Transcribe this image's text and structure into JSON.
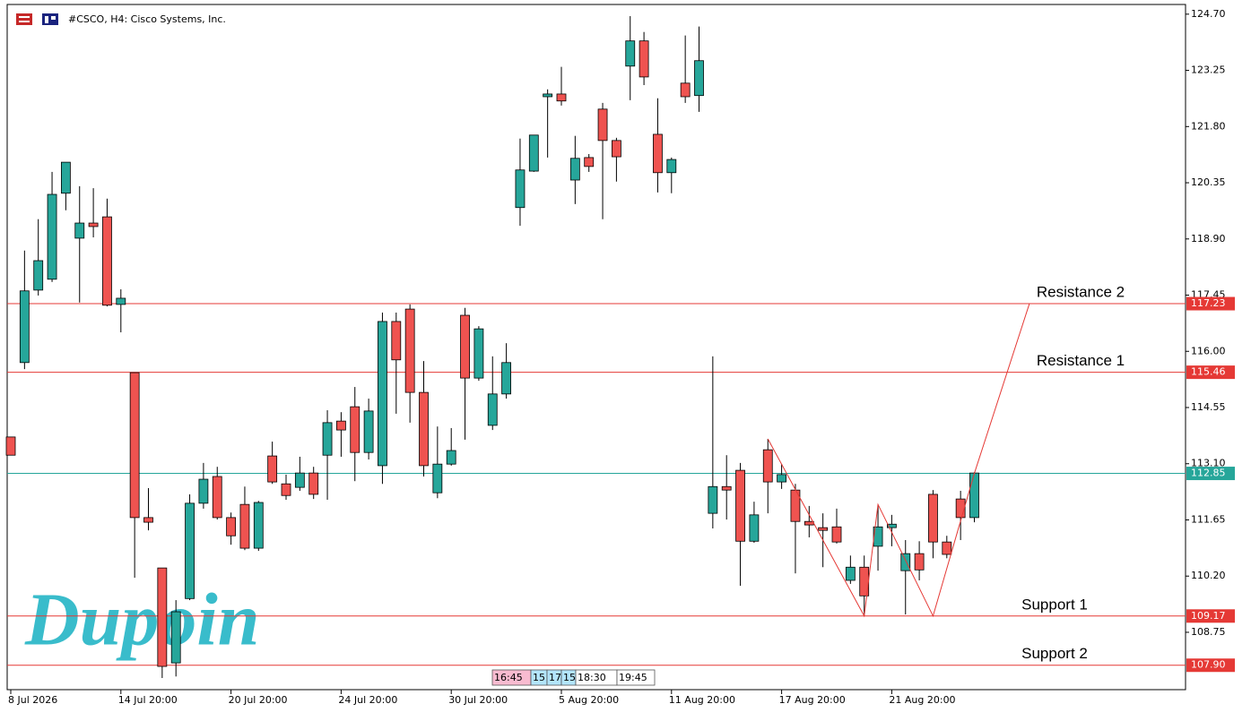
{
  "chart_data": {
    "type": "candlestick",
    "title": "#CSCO, H4:  Cisco Systems, Inc.",
    "watermark": "Dupoin",
    "categories": [
      "8 Jul 2026",
      null,
      null,
      null,
      null,
      null,
      null,
      null,
      "14 Jul 20:00",
      null,
      null,
      null,
      null,
      null,
      null,
      null,
      "20 Jul 20:00",
      null,
      null,
      null,
      null,
      null,
      null,
      null,
      "24 Jul 20:00",
      null,
      null,
      null,
      null,
      null,
      null,
      null,
      "30 Jul 20:00",
      null,
      null,
      null,
      null,
      null,
      null,
      null,
      "5 Aug 20:00",
      null,
      null,
      null,
      null,
      null,
      null,
      null,
      "11 Aug 20:00",
      null,
      null,
      null,
      null,
      null,
      null,
      null,
      "17 Aug 20:00",
      null,
      null,
      null,
      null,
      null,
      null,
      null,
      "21 Aug 20:00",
      null,
      null,
      null,
      null,
      null,
      null
    ],
    "open": [
      113.79,
      115.71,
      117.58,
      117.86,
      120.08,
      118.92,
      119.31,
      119.47,
      117.21,
      115.45,
      111.71,
      110.41,
      107.96,
      109.62,
      112.08,
      112.77,
      111.71,
      112.05,
      110.92,
      113.3,
      112.58,
      112.49,
      112.86,
      113.32,
      114.2,
      114.57,
      113.39,
      113.05,
      116.77,
      117.09,
      114.94,
      112.35,
      113.09,
      116.93,
      115.31,
      114.09,
      114.9,
      119.71,
      120.65,
      122.57,
      122.64,
      120.42,
      121.0,
      122.25,
      121.44,
      123.36,
      124.01,
      121.6,
      120.61,
      122.92,
      122.6,
      111.82,
      112.51,
      112.93,
      111.1,
      113.46,
      112.63,
      112.42,
      111.61,
      111.45,
      111.47,
      110.09,
      110.43,
      110.97,
      111.45,
      110.34,
      110.78,
      112.31,
      111.08,
      112.19,
      111.71
    ],
    "high": [
      113.79,
      118.6,
      119.41,
      120.63,
      120.88,
      120.26,
      120.21,
      119.94,
      117.6,
      115.45,
      112.47,
      110.41,
      109.58,
      112.31,
      113.12,
      113.02,
      111.84,
      112.51,
      112.14,
      113.67,
      112.82,
      113.28,
      113.02,
      114.48,
      114.43,
      115.08,
      114.78,
      117.0,
      117.0,
      117.21,
      115.75,
      114.06,
      114.02,
      117.12,
      116.65,
      115.87,
      116.21,
      121.49,
      121.58,
      122.76,
      123.34,
      121.56,
      121.09,
      122.41,
      121.51,
      124.65,
      124.24,
      122.53,
      121.0,
      124.15,
      124.38,
      115.87,
      113.32,
      113.12,
      112.12,
      113.74,
      113.09,
      112.58,
      112.01,
      111.82,
      111.94,
      110.73,
      110.73,
      112.01,
      111.78,
      111.13,
      111.1,
      112.42,
      111.24,
      112.4,
      112.88
    ],
    "low": [
      113.32,
      115.54,
      117.44,
      117.79,
      119.64,
      117.26,
      118.94,
      117.16,
      116.49,
      110.16,
      111.38,
      107.57,
      107.61,
      109.58,
      111.94,
      111.66,
      111.01,
      110.87,
      110.85,
      112.58,
      112.17,
      112.4,
      112.19,
      112.17,
      113.28,
      112.65,
      113.21,
      112.58,
      114.39,
      114.16,
      112.77,
      112.21,
      113.05,
      113.72,
      115.24,
      113.97,
      114.78,
      119.24,
      120.63,
      121.0,
      122.34,
      119.8,
      120.63,
      119.41,
      120.38,
      122.48,
      122.87,
      120.1,
      120.08,
      122.41,
      122.18,
      111.43,
      111.66,
      109.95,
      111.06,
      111.82,
      112.45,
      110.27,
      111.2,
      110.43,
      111.04,
      110.0,
      109.19,
      110.34,
      110.97,
      109.21,
      110.09,
      110.66,
      110.66,
      111.13,
      111.59
    ],
    "close": [
      113.32,
      117.56,
      118.34,
      120.05,
      120.88,
      119.31,
      119.22,
      117.19,
      117.37,
      111.71,
      111.59,
      107.87,
      109.28,
      112.08,
      112.7,
      111.71,
      111.24,
      110.92,
      112.1,
      112.63,
      112.28,
      112.86,
      112.31,
      114.16,
      113.97,
      113.39,
      114.46,
      116.77,
      115.78,
      114.94,
      113.05,
      113.09,
      113.44,
      115.31,
      116.58,
      114.9,
      115.71,
      120.68,
      121.58,
      122.64,
      122.46,
      120.98,
      120.77,
      121.44,
      121.02,
      124.01,
      123.08,
      120.61,
      120.95,
      122.57,
      123.5,
      112.51,
      112.42,
      111.1,
      111.78,
      112.63,
      112.82,
      111.61,
      111.52,
      111.38,
      111.08,
      110.43,
      109.69,
      111.47,
      111.54,
      110.78,
      110.36,
      111.08,
      110.76,
      111.71,
      112.86
    ],
    "up_color": "#26a69a",
    "down_color": "#ef5350",
    "ylim": [
      107.27,
      124.95
    ],
    "yticks": [
      {
        "value": 124.7,
        "label": "124.70"
      },
      123.25,
      {
        "value": 121.8,
        "label": "121.80"
      },
      120.35,
      {
        "value": 118.9,
        "label": "118.90"
      },
      117.45,
      {
        "value": 116,
        "label": "116.00"
      },
      114.55,
      {
        "value": 113.1,
        "label": "113.10"
      },
      111.65,
      {
        "value": 110.2,
        "label": "110.20"
      },
      108.75
    ],
    "levels": {
      "names": [
        "Resistance 2",
        "Resistance 1",
        "Support 1",
        "Support 2"
      ],
      "values": [
        117.23,
        115.46,
        109.17,
        107.9
      ],
      "value_labels": [
        "117.23",
        "115.46",
        "109.17",
        "107.90"
      ],
      "color": "#e53935"
    },
    "current_price": {
      "value": 112.85,
      "color": "#26a69a"
    },
    "pattern": {
      "x": [
        55,
        62,
        63,
        67,
        70,
        74
      ],
      "y": [
        113.74,
        109.17,
        112.05,
        109.17,
        112.85,
        117.23
      ],
      "color": "#e53935"
    },
    "session_markers": [
      "16:45",
      "15",
      "17",
      "15",
      "18:30",
      "19:45"
    ]
  }
}
